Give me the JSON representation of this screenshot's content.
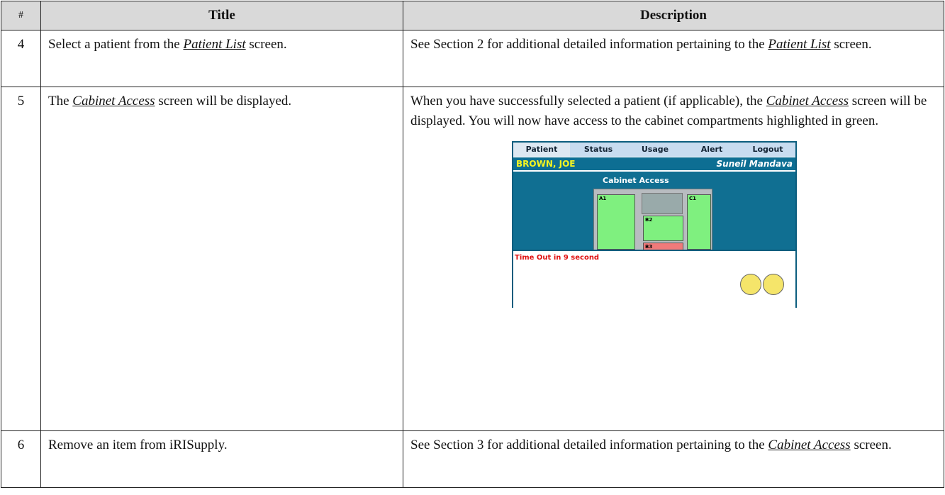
{
  "table": {
    "header": [
      "#",
      "Title",
      "Description"
    ],
    "rows": [
      {
        "number": "4",
        "title": [
          "Select a patient from the ",
          "Patient List",
          " screen."
        ],
        "description": [
          "See Section 2 for additional detailed information pertaining to the ",
          "Patient List",
          " screen."
        ]
      },
      {
        "number": "5",
        "title": [
          "The ",
          "Cabinet Access",
          " screen will be displayed."
        ],
        "description": [
          "When you have successfully selected a patient (if applicable), the ",
          "Cabinet Access",
          " screen will be displayed.  You will now have access to the cabinet compartments highlighted in green."
        ],
        "screenshot": {
          "tabs": [
            "Patient",
            "Status",
            "Usage",
            "Alert",
            "Logout"
          ],
          "patient": "BROWN, JOE",
          "user": "Suneil Mandava",
          "heading": "Cabinet Access",
          "compartments": [
            "A1",
            "B2",
            "B3",
            "C1"
          ],
          "timeout": "Time Out in 9 second"
        }
      },
      {
        "number": "6",
        "title": [
          "Remove an item from iRISupply."
        ],
        "description": [
          "See Section 3 for additional detailed information pertaining to the ",
          "Cabinet Access",
          " screen."
        ]
      }
    ]
  }
}
